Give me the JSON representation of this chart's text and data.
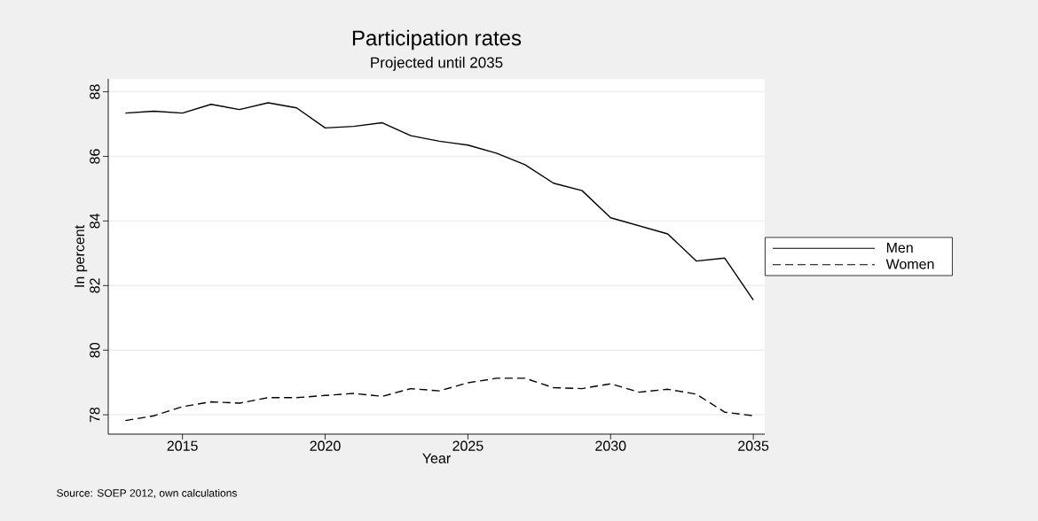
{
  "chart_data": {
    "type": "line",
    "title": "Participation rates",
    "subtitle": "Projected until 2035",
    "xlabel": "Year",
    "ylabel": "In percent",
    "x": [
      2013,
      2014,
      2015,
      2016,
      2017,
      2018,
      2019,
      2020,
      2021,
      2022,
      2023,
      2024,
      2025,
      2026,
      2027,
      2028,
      2029,
      2030,
      2031,
      2032,
      2033,
      2034,
      2035
    ],
    "series": [
      {
        "name": "Men",
        "color": "#000000",
        "line_style": "solid",
        "values": [
          87.34,
          87.4,
          87.34,
          87.61,
          87.45,
          87.66,
          87.5,
          86.88,
          86.93,
          87.04,
          86.64,
          86.47,
          86.35,
          86.1,
          85.74,
          85.17,
          84.94,
          84.1,
          83.85,
          83.6,
          82.76,
          82.85,
          81.55
        ]
      },
      {
        "name": "Women",
        "color": "#000000",
        "line_style": "dashed",
        "values": [
          77.82,
          77.97,
          78.25,
          78.4,
          78.36,
          78.53,
          78.53,
          78.6,
          78.66,
          78.57,
          78.81,
          78.74,
          78.99,
          79.13,
          79.13,
          78.84,
          78.81,
          78.96,
          78.7,
          78.79,
          78.64,
          78.08,
          77.97
        ]
      }
    ],
    "xlim": [
      2012.4,
      2035.4
    ],
    "ylim": [
      77.4,
      88.4
    ],
    "xticks": [
      2015,
      2020,
      2025,
      2030,
      2035
    ],
    "yticks": [
      78,
      80,
      82,
      84,
      86,
      88
    ],
    "grid": "y",
    "legend": "right",
    "marker": "none",
    "annotations": [
      "Source: SOEP 2012, own calculations"
    ]
  }
}
